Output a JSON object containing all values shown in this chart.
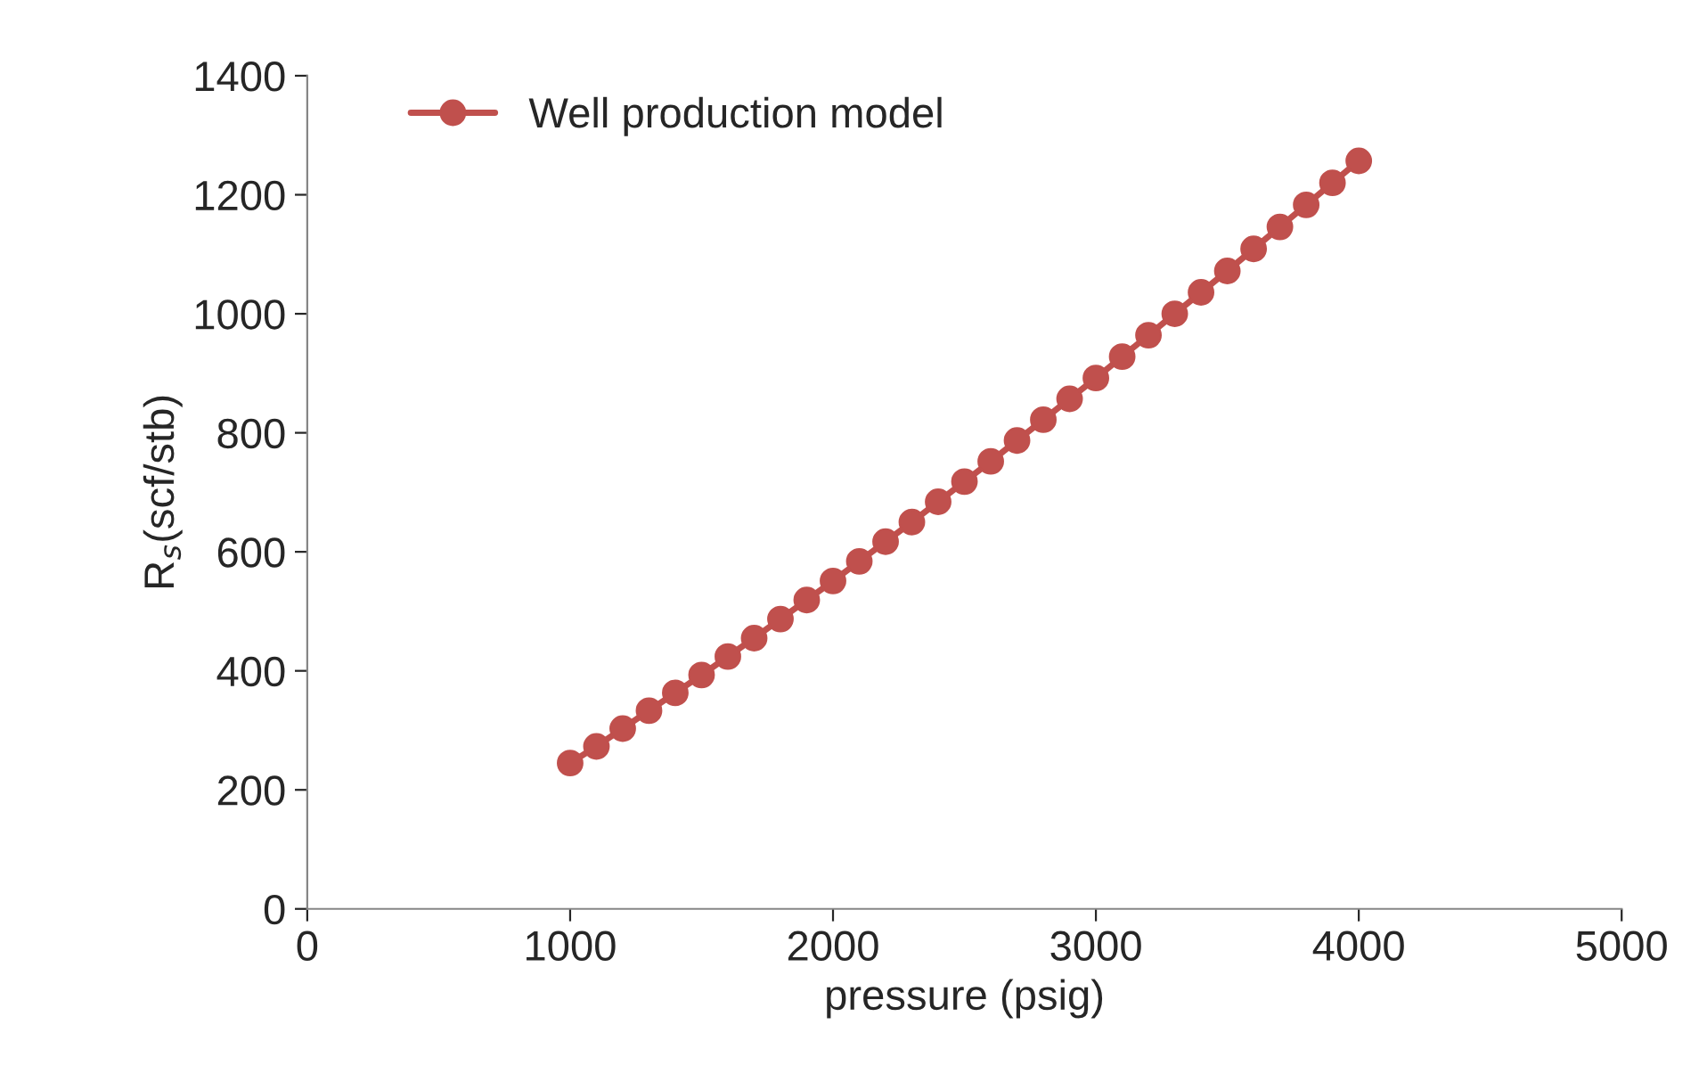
{
  "chart_data": {
    "type": "line",
    "xlabel": "pressure (psig)",
    "ylabel": "R$_{s}$(scf/stb)",
    "x": [
      1000,
      1100,
      1200,
      1300,
      1400,
      1500,
      1600,
      1700,
      1800,
      1900,
      2000,
      2100,
      2200,
      2300,
      2400,
      2500,
      2600,
      2700,
      2800,
      2900,
      3000,
      3100,
      3200,
      3300,
      3400,
      3500,
      3600,
      3700,
      3800,
      3900,
      4000
    ],
    "series": [
      {
        "name": "Well production model",
        "color": "#c0504d",
        "values": [
          245,
          273,
          303,
          333,
          363,
          393,
          424,
          455,
          487,
          519,
          551,
          584,
          617,
          650,
          684,
          718,
          752,
          787,
          822,
          857,
          892,
          928,
          964,
          1000,
          1036,
          1072,
          1109,
          1146,
          1183,
          1220,
          1257
        ]
      }
    ],
    "xlim": [
      0,
      5000
    ],
    "xticks": [
      0,
      1000,
      2000,
      3000,
      4000,
      5000
    ],
    "ylim": [
      0,
      1400
    ],
    "yticks": [
      0,
      200,
      400,
      600,
      800,
      1000,
      1200,
      1400
    ],
    "grid": false,
    "legend": "top left",
    "marker": "circle",
    "line_style": "solid"
  }
}
